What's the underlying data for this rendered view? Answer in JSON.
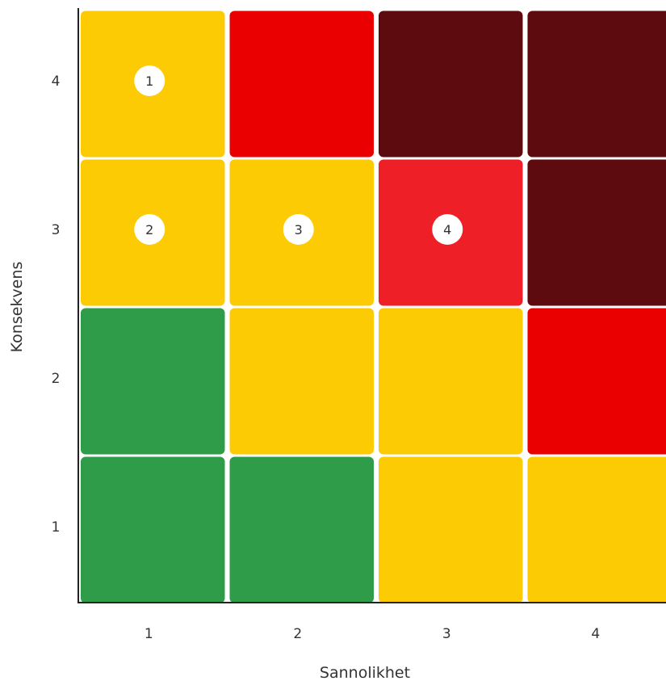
{
  "chart_data": {
    "type": "heatmap",
    "xlabel": "Sannolikhet",
    "ylabel": "Konsekvens",
    "x_categories": [
      "1",
      "2",
      "3",
      "4"
    ],
    "y_categories": [
      "1",
      "2",
      "3",
      "4"
    ],
    "colors": {
      "green": "#2e9c48",
      "yellow": "#fdcb04",
      "red": "#ea0000",
      "light_red": "#ee1f27",
      "dark_red": "#5e0b0f"
    },
    "cells": [
      {
        "x": "1",
        "y": "4",
        "color": "yellow"
      },
      {
        "x": "2",
        "y": "4",
        "color": "red"
      },
      {
        "x": "3",
        "y": "4",
        "color": "dark_red"
      },
      {
        "x": "4",
        "y": "4",
        "color": "dark_red"
      },
      {
        "x": "1",
        "y": "3",
        "color": "yellow"
      },
      {
        "x": "2",
        "y": "3",
        "color": "yellow"
      },
      {
        "x": "3",
        "y": "3",
        "color": "light_red"
      },
      {
        "x": "4",
        "y": "3",
        "color": "dark_red"
      },
      {
        "x": "1",
        "y": "2",
        "color": "green"
      },
      {
        "x": "2",
        "y": "2",
        "color": "yellow"
      },
      {
        "x": "3",
        "y": "2",
        "color": "yellow"
      },
      {
        "x": "4",
        "y": "2",
        "color": "red"
      },
      {
        "x": "1",
        "y": "1",
        "color": "green"
      },
      {
        "x": "2",
        "y": "1",
        "color": "green"
      },
      {
        "x": "3",
        "y": "1",
        "color": "yellow"
      },
      {
        "x": "4",
        "y": "1",
        "color": "yellow"
      }
    ],
    "markers": [
      {
        "label": "1",
        "x": "1",
        "y": "4"
      },
      {
        "label": "2",
        "x": "1",
        "y": "3"
      },
      {
        "label": "3",
        "x": "2",
        "y": "3"
      },
      {
        "label": "4",
        "x": "3",
        "y": "3"
      }
    ],
    "grid": false,
    "legend": "none"
  }
}
